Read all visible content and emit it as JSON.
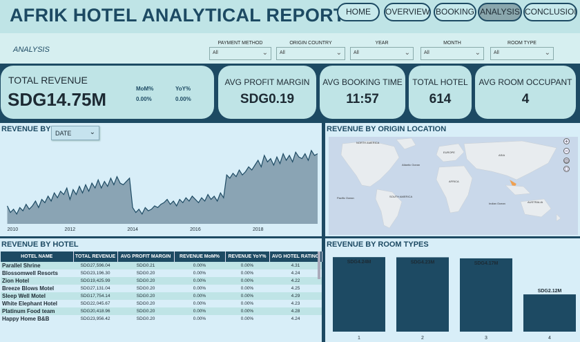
{
  "header": {
    "title": "AFRIK HOTEL ANALYTICAL REPORT",
    "nav": [
      "HOME",
      "OVERVIEW",
      "BOOKING",
      "ANALYSIS",
      "CONCLUSION"
    ],
    "active_nav": "ANALYSIS"
  },
  "filters": {
    "section_label": "ANALYSIS",
    "items": [
      {
        "label": "PAYMENT METHOD",
        "value": "All"
      },
      {
        "label": "ORIGIN COUNTRY",
        "value": "All"
      },
      {
        "label": "YEAR",
        "value": "All"
      },
      {
        "label": "MONTH",
        "value": "All"
      },
      {
        "label": "ROOM TYPE",
        "value": "All"
      }
    ]
  },
  "kpis": {
    "total_revenue": {
      "label": "TOTAL REVENUE",
      "value": "SDG14.75M",
      "mom_label": "MoM%",
      "mom_value": "0.00%",
      "yoy_label": "YoY%",
      "yoy_value": "0.00%"
    },
    "avg_profit_margin": {
      "label": "AVG PROFIT MARGIN",
      "value": "SDG0.19"
    },
    "avg_booking_time": {
      "label": "AVG BOOKING TIME",
      "value": "11:57"
    },
    "total_hotel": {
      "label": "TOTAL HOTEL",
      "value": "614"
    },
    "avg_room_occupant": {
      "label": "AVG ROOM OCCUPANT",
      "value": "4"
    }
  },
  "revenue_by": {
    "title": "REVENUE BY",
    "dropdown_value": "DATE"
  },
  "origin_map": {
    "title": "REVENUE BY ORIGIN LOCATION",
    "labels": [
      "NORTH AMERICA",
      "EUROPE",
      "ASIA",
      "AFRICA",
      "SOUTH AMERICA",
      "AUSTRALIA",
      "Atlantic Ocean",
      "Pacific Ocean",
      "Indian Ocean"
    ]
  },
  "hotel_table": {
    "title": "REVENUE BY HOTEL",
    "columns": [
      "HOTEL NAME",
      "TOTAL REVENUE",
      "AVG PROFIT MARGIN",
      "REVENUE MoM%",
      "REVENUE YoY%",
      "AVG HOTEL RATING"
    ],
    "rows": [
      [
        "Parallel Shrine",
        "SDG27,596.04",
        "SDG0.21",
        "0.00%",
        "0.00%",
        "4.31"
      ],
      [
        "Blossomwell Resorts",
        "SDG23,196.30",
        "SDG0.20",
        "0.00%",
        "0.00%",
        "4.24"
      ],
      [
        "Zion Hotel",
        "SDG19,425.99",
        "SDG0.20",
        "0.00%",
        "0.00%",
        "4.22"
      ],
      [
        "Breeze Blows Motel",
        "SDG27,131.04",
        "SDG0.20",
        "0.00%",
        "0.00%",
        "4.25"
      ],
      [
        "Sleep Well Motel",
        "SDG17,754.14",
        "SDG0.20",
        "0.00%",
        "0.00%",
        "4.29"
      ],
      [
        "White Elephant Hotel",
        "SDG22,045.67",
        "SDG0.20",
        "0.00%",
        "0.00%",
        "4.23"
      ],
      [
        "Platinum Food team",
        "SDG20,418.96",
        "SDG0.20",
        "0.00%",
        "0.00%",
        "4.28"
      ],
      [
        "Happy Home B&B",
        "SDG23,956.42",
        "SDG0.20",
        "0.00%",
        "0.00%",
        "4.24"
      ]
    ]
  },
  "colors": {
    "navy": "#1d4a63",
    "teal_light": "#bfe4e6",
    "panel": "#d8eef8",
    "area": "#8aa4b4"
  },
  "chart_data": [
    {
      "type": "area",
      "title": "REVENUE BY",
      "x_ticks": [
        "2010",
        "2012",
        "2014",
        "2016",
        "2018"
      ],
      "x_range": [
        2009.9,
        2019.9
      ],
      "ylim": [
        0,
        100
      ],
      "x": [
        2010.0,
        2010.1,
        2010.2,
        2010.3,
        2010.4,
        2010.5,
        2010.6,
        2010.7,
        2010.8,
        2010.9,
        2011.0,
        2011.1,
        2011.2,
        2011.3,
        2011.4,
        2011.5,
        2011.6,
        2011.7,
        2011.8,
        2011.9,
        2012.0,
        2012.1,
        2012.2,
        2012.3,
        2012.4,
        2012.5,
        2012.6,
        2012.7,
        2012.8,
        2012.9,
        2013.0,
        2013.1,
        2013.2,
        2013.3,
        2013.4,
        2013.5,
        2013.6,
        2013.7,
        2013.8,
        2013.9,
        2014.0,
        2014.1,
        2014.2,
        2014.3,
        2014.4,
        2014.5,
        2014.6,
        2014.7,
        2014.8,
        2014.9,
        2015.0,
        2015.1,
        2015.2,
        2015.3,
        2015.4,
        2015.5,
        2015.6,
        2015.7,
        2015.8,
        2015.9,
        2016.0,
        2016.1,
        2016.2,
        2016.3,
        2016.4,
        2016.5,
        2016.6,
        2016.7,
        2016.8,
        2016.9,
        2017.0,
        2017.1,
        2017.2,
        2017.3,
        2017.4,
        2017.5,
        2017.6,
        2017.7,
        2017.8,
        2017.9,
        2018.0,
        2018.1,
        2018.2,
        2018.3,
        2018.4,
        2018.5,
        2018.6,
        2018.7,
        2018.8,
        2018.9,
        2019.0,
        2019.1,
        2019.2,
        2019.3,
        2019.4,
        2019.5,
        2019.6,
        2019.7,
        2019.8,
        2019.9
      ],
      "values": [
        22,
        14,
        18,
        12,
        20,
        16,
        24,
        18,
        22,
        28,
        20,
        30,
        26,
        34,
        28,
        38,
        32,
        40,
        36,
        44,
        30,
        42,
        36,
        46,
        38,
        48,
        40,
        50,
        44,
        54,
        44,
        52,
        46,
        56,
        48,
        58,
        50,
        48,
        52,
        56,
        20,
        14,
        18,
        12,
        20,
        16,
        18,
        22,
        20,
        24,
        26,
        30,
        24,
        28,
        22,
        30,
        26,
        32,
        28,
        34,
        30,
        26,
        32,
        28,
        36,
        30,
        34,
        28,
        38,
        32,
        60,
        56,
        62,
        58,
        66,
        60,
        64,
        70,
        66,
        72,
        78,
        70,
        84,
        76,
        80,
        72,
        82,
        74,
        86,
        78,
        84,
        76,
        88,
        82,
        80,
        86,
        78,
        90,
        84,
        86
      ]
    },
    {
      "type": "bar",
      "title": "REVENUE BY ROOM TYPES",
      "categories": [
        "1",
        "2",
        "3",
        "4"
      ],
      "values": [
        4.24,
        4.23,
        4.17,
        2.12
      ],
      "data_labels": [
        "SDG4.24M",
        "SDG4.23M",
        "SDG4.17M",
        "SDG2.12M"
      ],
      "ylim": [
        0,
        4.6
      ]
    }
  ]
}
